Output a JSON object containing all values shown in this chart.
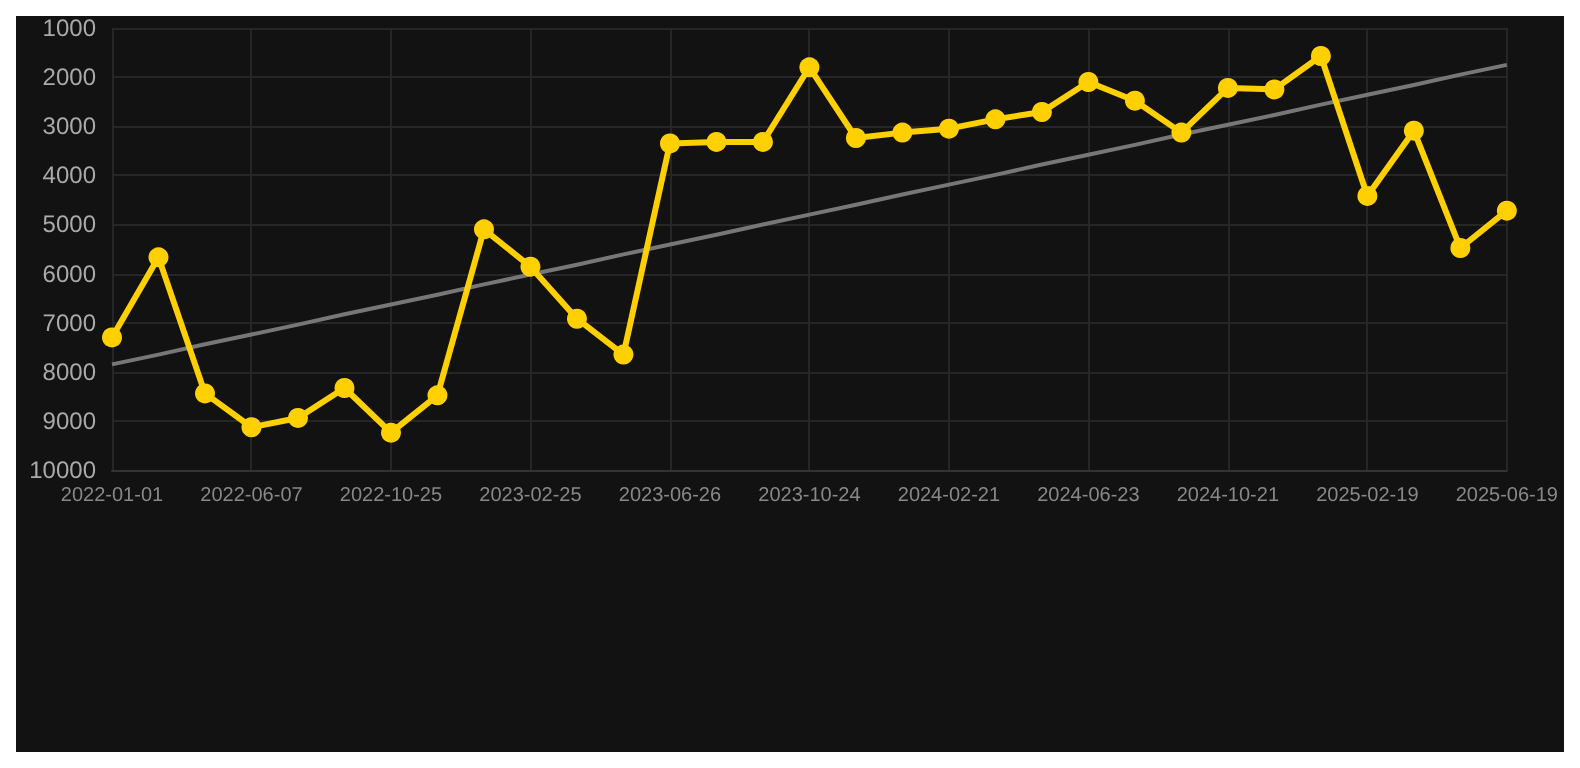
{
  "chart_data": {
    "type": "line",
    "categories": [
      "2022-01-01",
      null,
      null,
      "2022-06-07",
      null,
      null,
      "2022-10-25",
      null,
      null,
      "2023-02-25",
      null,
      null,
      "2023-06-26",
      null,
      null,
      "2023-10-24",
      null,
      null,
      "2024-02-21",
      null,
      null,
      "2024-06-23",
      null,
      null,
      "2024-10-21",
      null,
      null,
      "2025-02-19",
      null,
      null,
      "2025-06-19"
    ],
    "series": [
      {
        "color": "#ffd000",
        "values": [
          7300,
          5670,
          8440,
          9130,
          8940,
          8330,
          9240,
          8480,
          5100,
          5860,
          6920,
          7650,
          3350,
          3320,
          3320,
          1800,
          3240,
          3130,
          3050,
          2860,
          2710,
          2100,
          2480,
          3130,
          2220,
          2250,
          1570,
          4420,
          3090,
          5480,
          4720
        ]
      },
      {
        "type": "line",
        "color": "#777777",
        "marker": "none",
        "values": [
          7850,
          7650,
          7440,
          7240,
          7040,
          6830,
          6630,
          6430,
          6220,
          6020,
          5820,
          5610,
          5410,
          5210,
          5000,
          4800,
          4600,
          4390,
          4190,
          3990,
          3780,
          3580,
          3380,
          3170,
          2970,
          2770,
          2560,
          2360,
          2160,
          1950,
          1750
        ]
      }
    ],
    "ylim": [
      10000,
      1000
    ],
    "yticks": [
      1000,
      2000,
      3000,
      4000,
      5000,
      6000,
      7000,
      8000,
      9000,
      10000
    ],
    "grid": true,
    "marker": "circle",
    "line_style": "solid"
  }
}
